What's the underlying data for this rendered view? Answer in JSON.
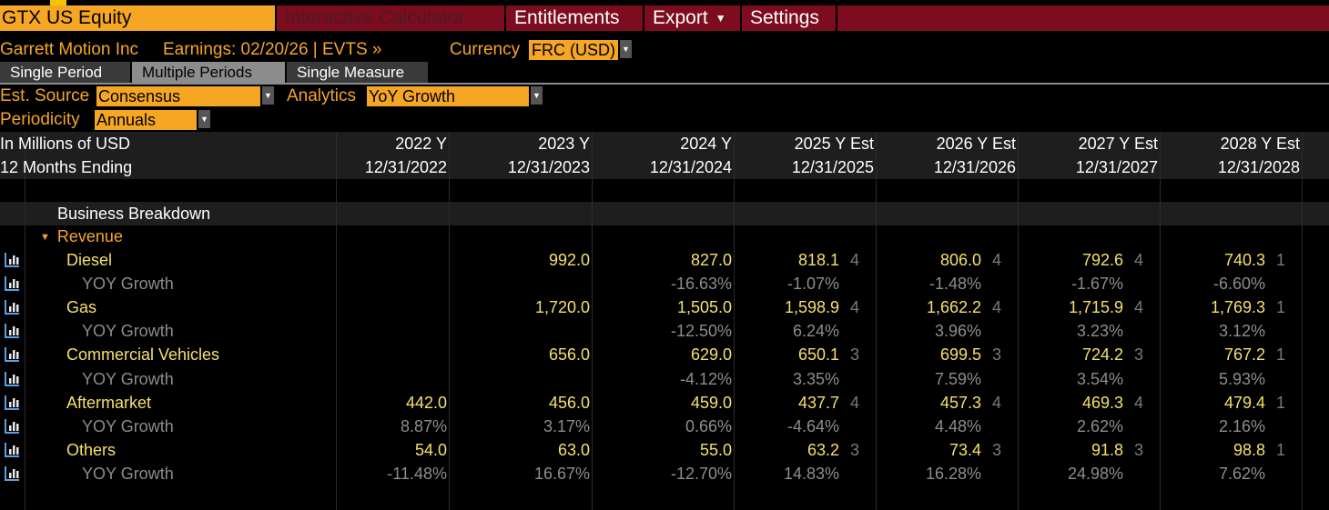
{
  "header": {
    "security": "GTX US Equity",
    "menu": [
      "Interactive Calculator",
      "Entitlements",
      "Export",
      "Settings"
    ],
    "company": "Garrett Motion Inc",
    "earnings": "Earnings: 02/20/26 | EVTS »",
    "currency_label": "Currency",
    "currency_value": "FRC (USD)"
  },
  "tabs": [
    "Single Period",
    "Multiple Periods",
    "Single Measure"
  ],
  "controls": {
    "est_source_label": "Est. Source",
    "est_source_value": "Consensus",
    "analytics_label": "Analytics",
    "analytics_value": "YoY Growth",
    "periodicity_label": "Periodicity",
    "periodicity_value": "Annuals"
  },
  "table": {
    "units_label": "In Millions of USD",
    "period_label": "12 Months Ending",
    "columns": [
      {
        "year": "2022 Y",
        "date": "12/31/2022"
      },
      {
        "year": "2023 Y",
        "date": "12/31/2023"
      },
      {
        "year": "2024 Y",
        "date": "12/31/2024"
      },
      {
        "year": "2025 Y Est",
        "date": "12/31/2025"
      },
      {
        "year": "2026 Y Est",
        "date": "12/31/2026"
      },
      {
        "year": "2027 Y Est",
        "date": "12/31/2027"
      },
      {
        "year": "2028 Y Est",
        "date": "12/31/2028"
      }
    ],
    "section": "Business Breakdown",
    "group": "Revenue",
    "rows": [
      {
        "label": "Diesel",
        "kind": "value",
        "values": [
          "",
          "992.0",
          "827.0",
          "818.1",
          "806.0",
          "792.6",
          "740.3"
        ],
        "counts": [
          "",
          "",
          "",
          "4",
          "4",
          "4",
          "1"
        ]
      },
      {
        "label": "YOY Growth",
        "kind": "growth",
        "values": [
          "",
          "",
          "-16.63%",
          "-1.07%",
          "-1.48%",
          "-1.67%",
          "-6.60%"
        ]
      },
      {
        "label": "Gas",
        "kind": "value",
        "values": [
          "",
          "1,720.0",
          "1,505.0",
          "1,598.9",
          "1,662.2",
          "1,715.9",
          "1,769.3"
        ],
        "counts": [
          "",
          "",
          "",
          "4",
          "4",
          "4",
          "1"
        ]
      },
      {
        "label": "YOY Growth",
        "kind": "growth",
        "values": [
          "",
          "",
          "-12.50%",
          "6.24%",
          "3.96%",
          "3.23%",
          "3.12%"
        ]
      },
      {
        "label": "Commercial Vehicles",
        "kind": "value",
        "values": [
          "",
          "656.0",
          "629.0",
          "650.1",
          "699.5",
          "724.2",
          "767.2"
        ],
        "counts": [
          "",
          "",
          "",
          "3",
          "3",
          "3",
          "1"
        ]
      },
      {
        "label": "YOY Growth",
        "kind": "growth",
        "values": [
          "",
          "",
          "-4.12%",
          "3.35%",
          "7.59%",
          "3.54%",
          "5.93%"
        ]
      },
      {
        "label": "Aftermarket",
        "kind": "value",
        "values": [
          "442.0",
          "456.0",
          "459.0",
          "437.7",
          "457.3",
          "469.3",
          "479.4"
        ],
        "counts": [
          "",
          "",
          "",
          "4",
          "4",
          "4",
          "1"
        ]
      },
      {
        "label": "YOY Growth",
        "kind": "growth",
        "values": [
          "8.87%",
          "3.17%",
          "0.66%",
          "-4.64%",
          "4.48%",
          "2.62%",
          "2.16%"
        ]
      },
      {
        "label": "Others",
        "kind": "value",
        "values": [
          "54.0",
          "63.0",
          "55.0",
          "63.2",
          "73.4",
          "91.8",
          "98.8"
        ],
        "counts": [
          "",
          "",
          "",
          "3",
          "3",
          "3",
          "1"
        ]
      },
      {
        "label": "YOY Growth",
        "kind": "growth",
        "values": [
          "-11.48%",
          "16.67%",
          "-12.70%",
          "14.83%",
          "16.28%",
          "24.98%",
          "7.62%"
        ]
      }
    ]
  },
  "colors": {
    "amber": "#f5a623",
    "menu_red": "#7c0c1e",
    "value_yellow": "#f5e06a",
    "growth_grey": "#8d8d8d"
  },
  "icons": {
    "row_chart": "bar-chart-icon",
    "dropdown": "chevron-down-icon",
    "group_toggle": "triangle-down-icon"
  }
}
